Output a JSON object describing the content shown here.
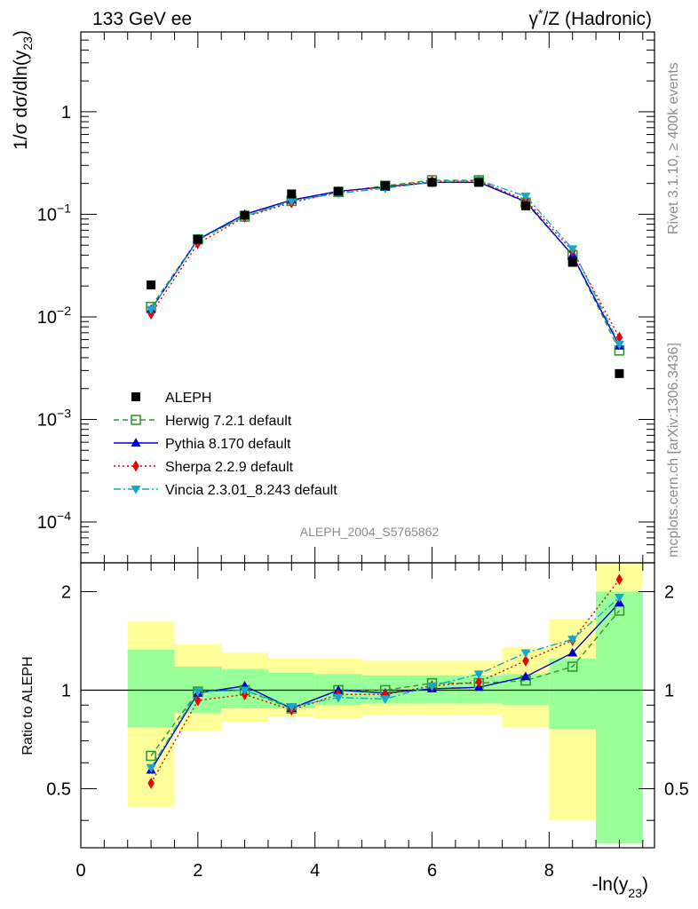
{
  "header": {
    "left": "133 GeV ee",
    "right_base": "γ",
    "right_sup": "*",
    "right_rest": "/Z (Hadronic)"
  },
  "side": {
    "rivet": "Rivet 3.1.10, ≥ 400k events",
    "mcplots": "mcplots.cern.ch [arXiv:1306.3436]"
  },
  "analysis_label": "ALEPH_2004_S5765862",
  "main": {
    "ylabel_base": "1/σ  dσ/dln(y",
    "ylabel_sub": "23",
    "ylabel_close": ")",
    "yticks": [
      {
        "value": 1,
        "label": "1"
      },
      {
        "value": 0.1,
        "base": "10",
        "exp": "−1"
      },
      {
        "value": 0.01,
        "base": "10",
        "exp": "−2"
      },
      {
        "value": 0.001,
        "base": "10",
        "exp": "−3"
      },
      {
        "value": 0.0001,
        "base": "10",
        "exp": "−4"
      }
    ]
  },
  "ratio": {
    "ylabel": "Ratio to ALEPH",
    "yticks": [
      {
        "value": 0.5,
        "label": "0.5"
      },
      {
        "value": 1,
        "label": "1"
      },
      {
        "value": 2,
        "label": "2"
      }
    ]
  },
  "xaxis": {
    "label_base": "-ln(y",
    "label_sub": "23",
    "label_close": ")",
    "ticks": [
      {
        "value": 0,
        "label": "0"
      },
      {
        "value": 2,
        "label": "2"
      },
      {
        "value": 4,
        "label": "4"
      },
      {
        "value": 6,
        "label": "6"
      },
      {
        "value": 8,
        "label": "8"
      }
    ]
  },
  "chart_data": {
    "type": "scatter",
    "x_range": [
      0,
      9.8
    ],
    "main_y_range": [
      4e-05,
      6
    ],
    "main_y_scale": "log",
    "ratio_y_range": [
      0.33,
      2.45
    ],
    "ratio_y_scale": "log",
    "legend_position": "bottom-left",
    "bins": [
      {
        "low": 0.8,
        "high": 1.6
      },
      {
        "low": 1.6,
        "high": 2.4
      },
      {
        "low": 2.4,
        "high": 3.2
      },
      {
        "low": 3.2,
        "high": 4.0
      },
      {
        "low": 4.0,
        "high": 4.8
      },
      {
        "low": 4.8,
        "high": 5.6
      },
      {
        "low": 5.6,
        "high": 6.4
      },
      {
        "low": 6.4,
        "high": 7.2
      },
      {
        "low": 7.2,
        "high": 8.0
      },
      {
        "low": 8.0,
        "high": 8.8
      },
      {
        "low": 8.8,
        "high": 9.6
      }
    ],
    "x": [
      1.2,
      2.0,
      2.8,
      3.6,
      4.4,
      5.2,
      6.0,
      6.8,
      7.6,
      8.4,
      9.2
    ],
    "data": {
      "name": "ALEPH",
      "values": [
        0.0205,
        0.057,
        0.098,
        0.158,
        0.168,
        0.19,
        0.205,
        0.205,
        0.121,
        0.034,
        0.0028
      ],
      "band_inner": [
        [
          0.77,
          1.33
        ],
        [
          0.85,
          1.18
        ],
        [
          0.88,
          1.16
        ],
        [
          0.88,
          1.13
        ],
        [
          0.9,
          1.12
        ],
        [
          0.91,
          1.11
        ],
        [
          0.91,
          1.11
        ],
        [
          0.91,
          1.11
        ],
        [
          0.9,
          1.12
        ],
        [
          0.76,
          1.25
        ],
        [
          0.34,
          2.0
        ]
      ],
      "band_outer": [
        [
          0.44,
          1.62
        ],
        [
          0.75,
          1.38
        ],
        [
          0.8,
          1.3
        ],
        [
          0.83,
          1.25
        ],
        [
          0.82,
          1.25
        ],
        [
          0.84,
          1.23
        ],
        [
          0.84,
          1.23
        ],
        [
          0.84,
          1.23
        ],
        [
          0.77,
          1.35
        ],
        [
          0.4,
          1.65
        ],
        [
          0.34,
          2.45
        ]
      ]
    },
    "series": [
      {
        "name": "Herwig 7.2.1 default",
        "color": "#339933",
        "marker": "open-square",
        "dash": "6,4",
        "values": [
          0.0125,
          0.057,
          0.095,
          0.135,
          0.165,
          0.19,
          0.215,
          0.215,
          0.13,
          0.04,
          0.0047
        ],
        "ratio": [
          0.63,
          0.99,
          1.0,
          0.88,
          1.0,
          1.0,
          1.05,
          1.05,
          1.07,
          1.18,
          1.75
        ]
      },
      {
        "name": "Pythia 8.170 default",
        "color": "#0000cc",
        "marker": "filled-triangle-up",
        "dash": "",
        "values": [
          0.0118,
          0.057,
          0.1,
          0.138,
          0.168,
          0.185,
          0.205,
          0.205,
          0.133,
          0.04,
          0.0052
        ],
        "ratio": [
          0.57,
          0.98,
          1.03,
          0.88,
          1.0,
          0.98,
          1.01,
          1.02,
          1.1,
          1.3,
          1.85
        ]
      },
      {
        "name": "Sherpa 2.2.9 default",
        "color": "#ee0000",
        "marker": "filled-diamond",
        "dash": "2,3",
        "values": [
          0.0107,
          0.052,
          0.094,
          0.13,
          0.165,
          0.185,
          0.21,
          0.21,
          0.138,
          0.044,
          0.0063
        ],
        "ratio": [
          0.52,
          0.93,
          0.97,
          0.87,
          0.97,
          0.97,
          1.03,
          1.06,
          1.23,
          1.42,
          2.18
        ]
      },
      {
        "name": "Vincia 2.3.01_8.243 default",
        "color": "#11aacc",
        "marker": "filled-triangle-down",
        "dash": "8,3,2,3",
        "values": [
          0.0118,
          0.056,
          0.096,
          0.135,
          0.16,
          0.18,
          0.205,
          0.215,
          0.15,
          0.046,
          0.0054
        ],
        "ratio": [
          0.58,
          0.99,
          1.0,
          0.89,
          0.95,
          0.94,
          1.03,
          1.12,
          1.3,
          1.43,
          1.92
        ]
      }
    ]
  }
}
